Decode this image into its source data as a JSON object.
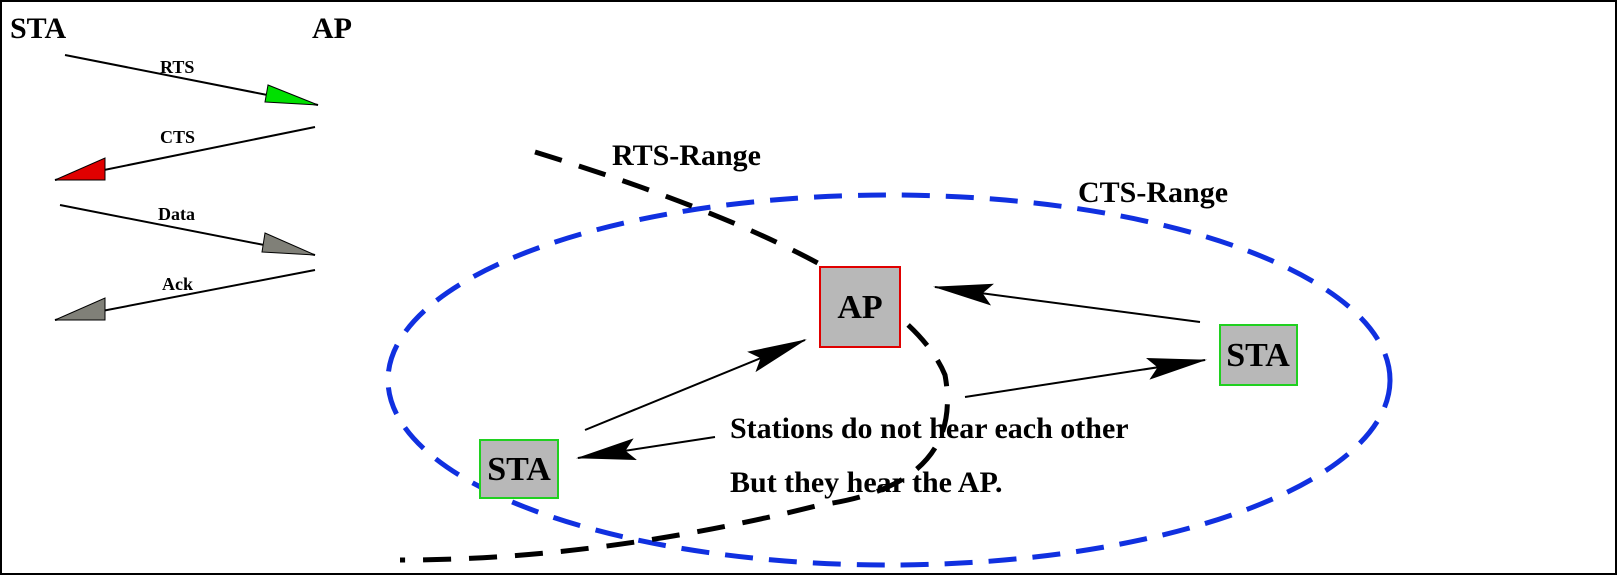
{
  "sequence": {
    "left": "STA",
    "right": "AP",
    "messages": [
      "RTS",
      "CTS",
      "Data",
      "Ack"
    ]
  },
  "ranges": {
    "rts": "RTS-Range",
    "cts": "CTS-Range"
  },
  "nodes": [
    {
      "label": "AP"
    },
    {
      "label": "STA"
    },
    {
      "label": "STA"
    }
  ],
  "caption": [
    "Stations do not hear each other",
    "But they hear the AP."
  ]
}
